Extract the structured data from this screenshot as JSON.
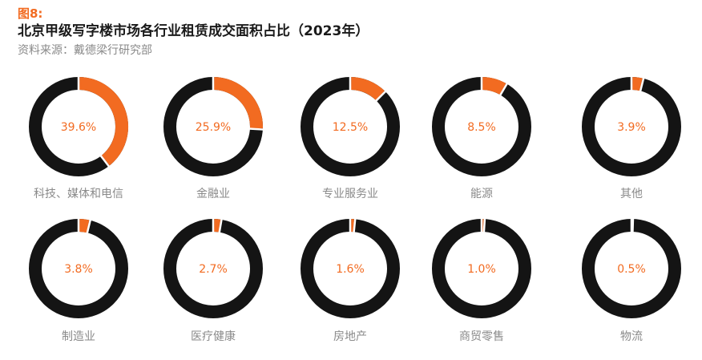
{
  "header": {
    "figure_label": "图8:",
    "title": "北京甲级写字楼市场各行业租赁成交面积占比（2023年）",
    "source": "资料来源：戴德梁行研究部"
  },
  "colors": {
    "accent": "#f26b21",
    "ring": "#141414",
    "category_text": "#8a8a8a"
  },
  "chart_data": [
    {
      "type": "pie",
      "category": "科技、媒体和电信",
      "value": 39.6,
      "label": "39.6%"
    },
    {
      "type": "pie",
      "category": "金融业",
      "value": 25.9,
      "label": "25.9%"
    },
    {
      "type": "pie",
      "category": "专业服务业",
      "value": 12.5,
      "label": "12.5%"
    },
    {
      "type": "pie",
      "category": "能源",
      "value": 8.5,
      "label": "8.5%"
    },
    {
      "type": "pie",
      "category": "其他",
      "value": 3.9,
      "label": "3.9%"
    },
    {
      "type": "pie",
      "category": "制造业",
      "value": 3.8,
      "label": "3.8%"
    },
    {
      "type": "pie",
      "category": "医疗健康",
      "value": 2.7,
      "label": "2.7%"
    },
    {
      "type": "pie",
      "category": "房地产",
      "value": 1.6,
      "label": "1.6%"
    },
    {
      "type": "pie",
      "category": "商贸零售",
      "value": 1.0,
      "label": "1.0%"
    },
    {
      "type": "pie",
      "category": "物流",
      "value": 0.5,
      "label": "0.5%"
    }
  ]
}
